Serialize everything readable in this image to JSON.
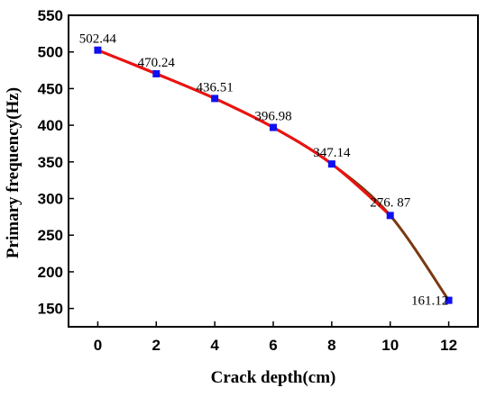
{
  "chart_data": {
    "type": "line",
    "title": "",
    "xlabel": "Crack depth(cm)",
    "ylabel": "Primary frequency(Hz)",
    "xlim": [
      -1,
      13
    ],
    "ylim": [
      125,
      550
    ],
    "x_ticks": [
      0,
      2,
      4,
      6,
      8,
      10,
      12
    ],
    "y_ticks": [
      150,
      200,
      250,
      300,
      350,
      400,
      450,
      500,
      550
    ],
    "grid": false,
    "legend": "none",
    "series": [
      {
        "x": [
          0,
          2,
          4,
          6,
          8,
          10,
          12
        ],
        "values": [
          502.44,
          470.24,
          436.51,
          396.98,
          347.14,
          276.87,
          161.12
        ],
        "labels": [
          "502.44",
          "470.24",
          "436.51",
          "396.98",
          "347.14",
          "276. 87",
          "161.12"
        ],
        "marker": "square",
        "marker_color": "#1010ee",
        "line_color": "#ee1111",
        "line_color_end": "#7a3a12"
      }
    ]
  }
}
